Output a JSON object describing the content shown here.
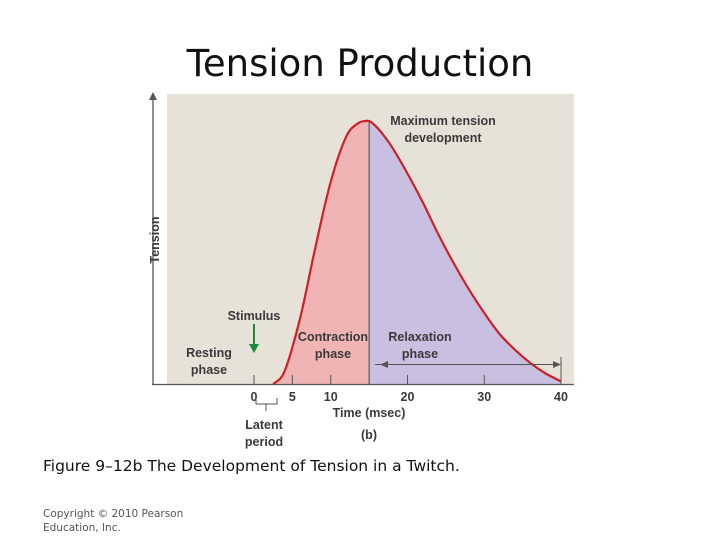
{
  "slide": {
    "title": "Tension Production",
    "caption": "Figure 9–12b The Development of Tension in a Twitch.",
    "copyright": "Copyright © 2010 Pearson Education, Inc."
  },
  "chart_data": {
    "type": "area",
    "panel_label": "(b)",
    "xlabel": "Time (msec)",
    "ylabel": "Tension",
    "xlim": [
      -5.5,
      40.5
    ],
    "ylim": [
      0,
      1.07
    ],
    "x_ticks": [
      0,
      5,
      10,
      20,
      30,
      40
    ],
    "curve": {
      "x": [
        2.5,
        4,
        6,
        8,
        10,
        12,
        13.5,
        14.5,
        15,
        15.5,
        16.5,
        18,
        20,
        22,
        24,
        26,
        28,
        30,
        32,
        34,
        36,
        38,
        40
      ],
      "y": [
        0,
        0.05,
        0.25,
        0.52,
        0.77,
        0.94,
        0.99,
        1.0,
        1.0,
        0.99,
        0.96,
        0.9,
        0.8,
        0.69,
        0.57,
        0.46,
        0.36,
        0.27,
        0.19,
        0.13,
        0.08,
        0.04,
        0.01
      ]
    },
    "phases": [
      {
        "name": "contraction",
        "label_lines": [
          "Contraction",
          "phase"
        ],
        "x_range": [
          2.5,
          15
        ],
        "color": "#f0b4b4"
      },
      {
        "name": "relaxation",
        "label_lines": [
          "Relaxation",
          "phase"
        ],
        "x_range": [
          15,
          40
        ],
        "color": "#c9bfe1"
      }
    ],
    "annotations": {
      "peak_lines": [
        "Maximum tension",
        "development"
      ],
      "stimulus": "Stimulus",
      "resting_lines": [
        "Resting",
        "phase"
      ],
      "latent_lines": [
        "Latent",
        "period"
      ],
      "stimulus_at_x": 0,
      "latent_range": [
        0,
        2.5
      ]
    },
    "colors": {
      "background": "#e6e2d8",
      "curve": "#cc2127",
      "stimulus_arrow": "#1a8a3a",
      "axis": "#555555"
    }
  }
}
